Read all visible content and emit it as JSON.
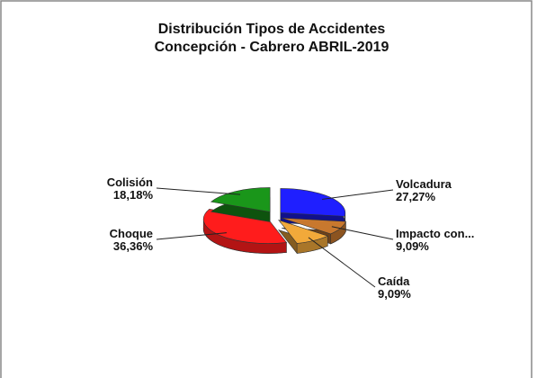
{
  "chart_data": {
    "type": "pie3d",
    "title": "Distribución Tipos de Accidentes",
    "subtitle": "Concepción - Cabrero ABRIL-2019",
    "categories": [
      "Volcadura",
      "Impacto con...",
      "Caída",
      "Choque",
      "Colisión"
    ],
    "values": [
      27.27,
      9.09,
      9.09,
      36.36,
      18.18
    ],
    "value_labels": [
      "27,27%",
      "9,09%",
      "9,09%",
      "36,36%",
      "18,18%"
    ],
    "colors": [
      "#1f1fff",
      "#c8782e",
      "#f2a93a",
      "#ff1c1c",
      "#1a961a"
    ]
  }
}
